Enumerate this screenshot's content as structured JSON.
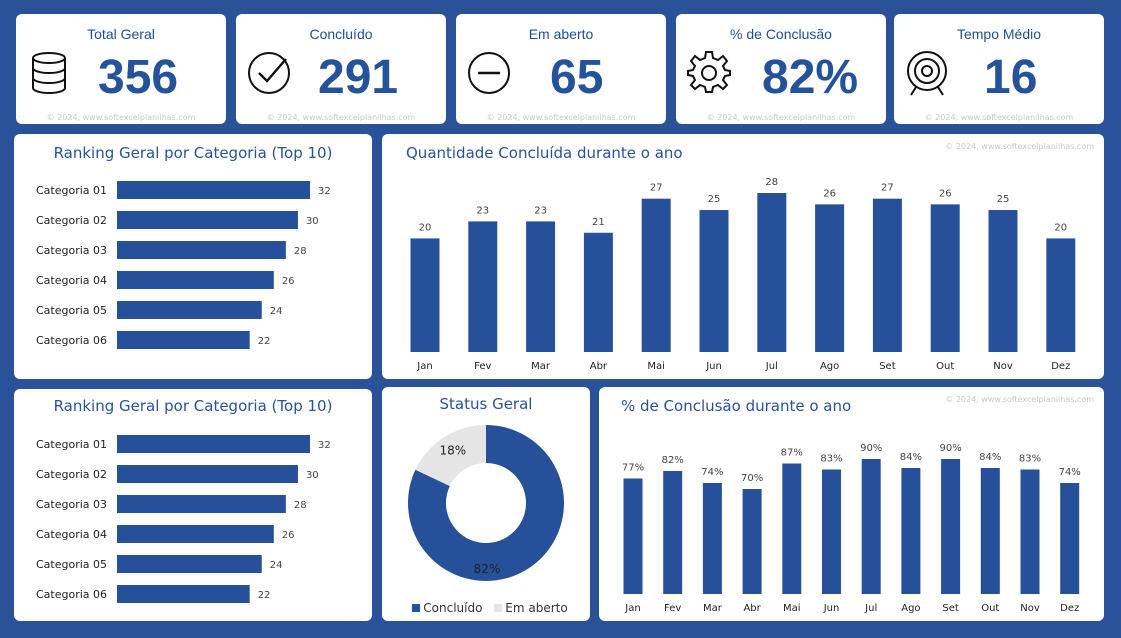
{
  "kpis": [
    {
      "title": "Total Geral",
      "value": "356",
      "icon": "database-icon"
    },
    {
      "title": "Concluído",
      "value": "291",
      "icon": "check-circle-icon"
    },
    {
      "title": "Em aberto",
      "value": "65",
      "icon": "minus-circle-icon"
    },
    {
      "title": "% de Conclusão",
      "value": "82%",
      "icon": "gear-icon"
    },
    {
      "title": "Tempo Médio",
      "value": "16",
      "icon": "target-icon"
    }
  ],
  "watermark": "© 2024, www.softexcelplanilhas.com",
  "colors": {
    "bar": "#26519a",
    "background": "#2a5298",
    "open": "#e5e5e5"
  },
  "chart_data": [
    {
      "type": "bar",
      "orientation": "horizontal",
      "title": "Ranking Geral por Categoria (Top 10)",
      "categories": [
        "Categoria 01",
        "Categoria 02",
        "Categoria 03",
        "Categoria 04",
        "Categoria 05",
        "Categoria 06"
      ],
      "values": [
        32,
        30,
        28,
        26,
        24,
        22
      ]
    },
    {
      "type": "bar",
      "title": "Quantidade Concluída durante o ano",
      "categories": [
        "Jan",
        "Fev",
        "Mar",
        "Abr",
        "Mai",
        "Jun",
        "Jul",
        "Ago",
        "Set",
        "Out",
        "Nov",
        "Dez"
      ],
      "values": [
        20,
        23,
        23,
        21,
        27,
        25,
        28,
        26,
        27,
        26,
        25,
        20
      ]
    },
    {
      "type": "bar",
      "orientation": "horizontal",
      "title": "Ranking Geral por Categoria (Top 10)",
      "categories": [
        "Categoria 01",
        "Categoria 02",
        "Categoria 03",
        "Categoria 04",
        "Categoria 05",
        "Categoria 06"
      ],
      "values": [
        32,
        30,
        28,
        26,
        24,
        22
      ]
    },
    {
      "type": "pie",
      "title": "Status Geral",
      "categories": [
        "Concluído",
        "Em aberto"
      ],
      "values": [
        82,
        18
      ],
      "labels": [
        "82%",
        "18%"
      ],
      "legend": "bottom"
    },
    {
      "type": "bar",
      "title": "% de Conclusão durante o ano",
      "categories": [
        "Jan",
        "Fev",
        "Mar",
        "Abr",
        "Mai",
        "Jun",
        "Jul",
        "Ago",
        "Set",
        "Out",
        "Nov",
        "Dez"
      ],
      "values": [
        77,
        82,
        74,
        70,
        87,
        83,
        90,
        84,
        90,
        84,
        83,
        74
      ],
      "labels": [
        "77%",
        "82%",
        "74%",
        "70%",
        "87%",
        "83%",
        "90%",
        "84%",
        "90%",
        "84%",
        "83%",
        "74%"
      ]
    }
  ]
}
